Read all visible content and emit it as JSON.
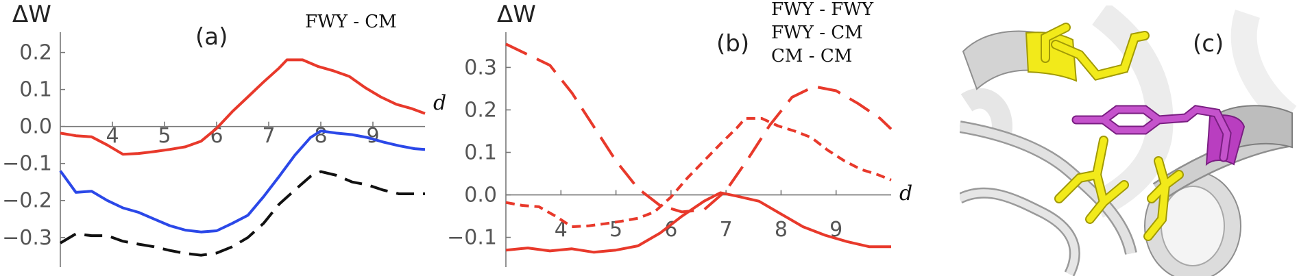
{
  "chart_data": [
    {
      "type": "line",
      "panel_label": "(a)",
      "ylabel": "ΔW",
      "xlabel": "d",
      "legend": [
        "FWY - CM"
      ],
      "xlim": [
        3.0,
        10.0
      ],
      "ylim": [
        -0.38,
        0.24
      ],
      "xticks": [
        4,
        5,
        6,
        7,
        8,
        9
      ],
      "yticks": [
        -0.3,
        -0.2,
        -0.1,
        0.0,
        0.1,
        0.2
      ],
      "xtick_labels": [
        "4",
        "5",
        "6",
        "7",
        "8",
        "9"
      ],
      "ytick_labels": [
        "−0.3",
        "−0.2",
        "−0.1",
        "0.0",
        "0.1",
        "0.2"
      ],
      "series": [
        {
          "color": "#e8392b",
          "style": "solid",
          "x": [
            3.0,
            3.3,
            3.6,
            3.9,
            4.2,
            4.5,
            4.8,
            5.1,
            5.4,
            5.7,
            6.0,
            6.3,
            6.6,
            6.9,
            7.2,
            7.35,
            7.65,
            7.95,
            8.25,
            8.55,
            8.85,
            9.15,
            9.45,
            9.75,
            10.0
          ],
          "y": [
            -0.018,
            -0.025,
            -0.028,
            -0.05,
            -0.075,
            -0.073,
            -0.068,
            -0.062,
            -0.055,
            -0.04,
            -0.005,
            0.04,
            0.08,
            0.12,
            0.158,
            0.18,
            0.18,
            0.162,
            0.15,
            0.135,
            0.105,
            0.08,
            0.06,
            0.048,
            0.035
          ]
        },
        {
          "color": "#2b48e8",
          "style": "solid",
          "x": [
            3.0,
            3.3,
            3.6,
            3.9,
            4.2,
            4.5,
            4.8,
            5.1,
            5.4,
            5.7,
            6.0,
            6.3,
            6.6,
            6.9,
            7.2,
            7.5,
            7.8,
            8.0,
            8.3,
            8.6,
            8.9,
            9.2,
            9.5,
            9.8,
            10.0
          ],
          "y": [
            -0.12,
            -0.178,
            -0.175,
            -0.2,
            -0.22,
            -0.232,
            -0.25,
            -0.268,
            -0.28,
            -0.285,
            -0.282,
            -0.262,
            -0.24,
            -0.19,
            -0.135,
            -0.078,
            -0.03,
            -0.012,
            -0.018,
            -0.022,
            -0.03,
            -0.042,
            -0.052,
            -0.06,
            -0.062
          ]
        },
        {
          "color": "#111111",
          "style": "dashed",
          "x": [
            3.0,
            3.3,
            3.6,
            3.9,
            4.2,
            4.5,
            4.8,
            5.1,
            5.4,
            5.7,
            6.0,
            6.3,
            6.6,
            6.9,
            7.2,
            7.5,
            7.8,
            8.0,
            8.3,
            8.6,
            8.9,
            9.2,
            9.5,
            9.8,
            10.0
          ],
          "y": [
            -0.315,
            -0.29,
            -0.295,
            -0.295,
            -0.31,
            -0.318,
            -0.325,
            -0.335,
            -0.343,
            -0.348,
            -0.342,
            -0.325,
            -0.3,
            -0.262,
            -0.21,
            -0.172,
            -0.135,
            -0.122,
            -0.132,
            -0.15,
            -0.158,
            -0.172,
            -0.182,
            -0.182,
            -0.182
          ]
        }
      ]
    },
    {
      "type": "line",
      "panel_label": "(b)",
      "ylabel": "ΔW",
      "xlabel": "d",
      "legend": [
        "FWY - FWY",
        "FWY - CM",
        "CM - CM"
      ],
      "xlim": [
        3.0,
        10.0
      ],
      "ylim": [
        -0.17,
        0.37
      ],
      "xticks": [
        4,
        5,
        6,
        7,
        8,
        9
      ],
      "yticks": [
        -0.1,
        0.0,
        0.1,
        0.2,
        0.3
      ],
      "xtick_labels": [
        "4",
        "5",
        "6",
        "7",
        "8",
        "9"
      ],
      "ytick_labels": [
        "−0.1",
        "0.0",
        "0.1",
        "0.2",
        "0.3"
      ],
      "series": [
        {
          "color": "#e8392b",
          "style": "longdash",
          "x": [
            3.0,
            3.4,
            3.8,
            4.2,
            4.6,
            5.0,
            5.4,
            5.8,
            6.2,
            6.6,
            7.0,
            7.4,
            7.8,
            8.2,
            8.6,
            9.0,
            9.4,
            9.8,
            10.0
          ],
          "y": [
            0.355,
            0.33,
            0.305,
            0.24,
            0.16,
            0.08,
            0.015,
            -0.025,
            -0.04,
            -0.035,
            0.01,
            0.085,
            0.165,
            0.23,
            0.255,
            0.245,
            0.215,
            0.18,
            0.155
          ]
        },
        {
          "color": "#e8392b",
          "style": "shortdash",
          "x": [
            3.0,
            3.3,
            3.6,
            3.9,
            4.2,
            4.5,
            4.8,
            5.1,
            5.4,
            5.7,
            6.0,
            6.3,
            6.6,
            6.9,
            7.2,
            7.35,
            7.65,
            7.95,
            8.25,
            8.55,
            8.85,
            9.15,
            9.45,
            9.75,
            10.0
          ],
          "y": [
            -0.018,
            -0.025,
            -0.028,
            -0.05,
            -0.075,
            -0.073,
            -0.068,
            -0.062,
            -0.055,
            -0.04,
            -0.005,
            0.04,
            0.08,
            0.12,
            0.158,
            0.18,
            0.18,
            0.162,
            0.15,
            0.135,
            0.105,
            0.08,
            0.06,
            0.048,
            0.035
          ]
        },
        {
          "color": "#e8392b",
          "style": "solid",
          "x": [
            3.0,
            3.4,
            3.8,
            4.2,
            4.6,
            5.0,
            5.4,
            5.8,
            6.2,
            6.6,
            6.9,
            7.2,
            7.6,
            8.0,
            8.4,
            8.8,
            9.2,
            9.6,
            10.0
          ],
          "y": [
            -0.13,
            -0.125,
            -0.132,
            -0.127,
            -0.135,
            -0.13,
            -0.12,
            -0.09,
            -0.05,
            -0.015,
            0.005,
            -0.003,
            -0.015,
            -0.045,
            -0.075,
            -0.095,
            -0.11,
            -0.122,
            -0.122
          ]
        }
      ]
    }
  ],
  "panel_c": {
    "label": "(c)",
    "colors": {
      "background": "#ffffff",
      "ribbon": "#c9c9c9",
      "ribbon_dark": "#8e8e8e",
      "yellow": "#f2ea1a",
      "yellow_dark": "#a19a06",
      "magenta": "#b93ec0"
    }
  }
}
